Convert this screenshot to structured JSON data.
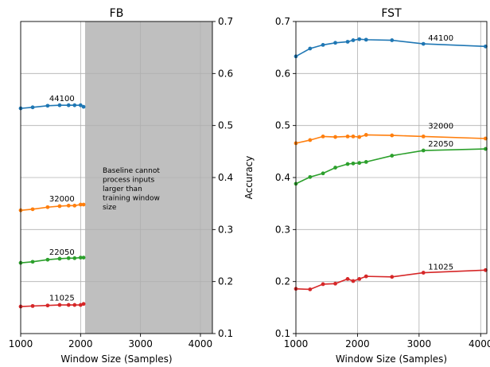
{
  "chart_data": [
    {
      "type": "line",
      "title": "FB",
      "xlabel": "Window Size (Samples)",
      "ylabel": "Accuracy",
      "xlim": [
        1000,
        4200
      ],
      "ylim": [
        0.1,
        0.7
      ],
      "xticks": [
        1000,
        2000,
        3000,
        4000
      ],
      "yticks": [
        0.1,
        0.2,
        0.3,
        0.4,
        0.5,
        0.6,
        0.7
      ],
      "yaxis_side": "right",
      "grid": true,
      "shaded_region": {
        "x": [
          2075,
          4200
        ],
        "color": "#bfbfbf"
      },
      "annotation": [
        "Baseline cannot",
        "process inputs",
        "larger than",
        "training window",
        "size"
      ],
      "x": [
        1000,
        1200,
        1450,
        1650,
        1800,
        1900,
        2000,
        2050
      ],
      "series": [
        {
          "name": "44100",
          "color": "#1f77b4",
          "values": [
            0.533,
            0.535,
            0.538,
            0.539,
            0.539,
            0.539,
            0.539,
            0.536
          ]
        },
        {
          "name": "32000",
          "color": "#ff7f0e",
          "values": [
            0.337,
            0.339,
            0.343,
            0.345,
            0.346,
            0.346,
            0.348,
            0.348
          ]
        },
        {
          "name": "22050",
          "color": "#2ca02c",
          "values": [
            0.236,
            0.238,
            0.242,
            0.244,
            0.245,
            0.245,
            0.246,
            0.246
          ]
        },
        {
          "name": "11025",
          "color": "#d62728",
          "values": [
            0.152,
            0.153,
            0.154,
            0.155,
            0.155,
            0.155,
            0.155,
            0.157
          ]
        }
      ]
    },
    {
      "type": "line",
      "title": "FST",
      "xlabel": "Window Size (Samples)",
      "ylabel": "",
      "xlim": [
        1000,
        4100
      ],
      "ylim": [
        0.1,
        0.7
      ],
      "xticks": [
        1000,
        2000,
        3000,
        4000
      ],
      "yticks": [
        0.1,
        0.2,
        0.3,
        0.4,
        0.5,
        0.6,
        0.7
      ],
      "yaxis_side": "left",
      "grid": true,
      "x": [
        1000,
        1230,
        1440,
        1640,
        1840,
        1930,
        2030,
        2140,
        2560,
        3070,
        4080
      ],
      "series": [
        {
          "name": "44100",
          "color": "#1f77b4",
          "values": [
            0.633,
            0.648,
            0.655,
            0.659,
            0.661,
            0.664,
            0.666,
            0.665,
            0.664,
            0.657,
            0.652
          ]
        },
        {
          "name": "32000",
          "color": "#ff7f0e",
          "values": [
            0.466,
            0.472,
            0.479,
            0.478,
            0.479,
            0.479,
            0.478,
            0.482,
            0.481,
            0.479,
            0.475
          ]
        },
        {
          "name": "22050",
          "color": "#2ca02c",
          "values": [
            0.388,
            0.401,
            0.408,
            0.419,
            0.426,
            0.427,
            0.428,
            0.43,
            0.442,
            0.452,
            0.455
          ]
        },
        {
          "name": "11025",
          "color": "#d62728",
          "values": [
            0.186,
            0.185,
            0.195,
            0.196,
            0.205,
            0.201,
            0.205,
            0.21,
            0.209,
            0.217,
            0.222
          ]
        }
      ]
    }
  ]
}
